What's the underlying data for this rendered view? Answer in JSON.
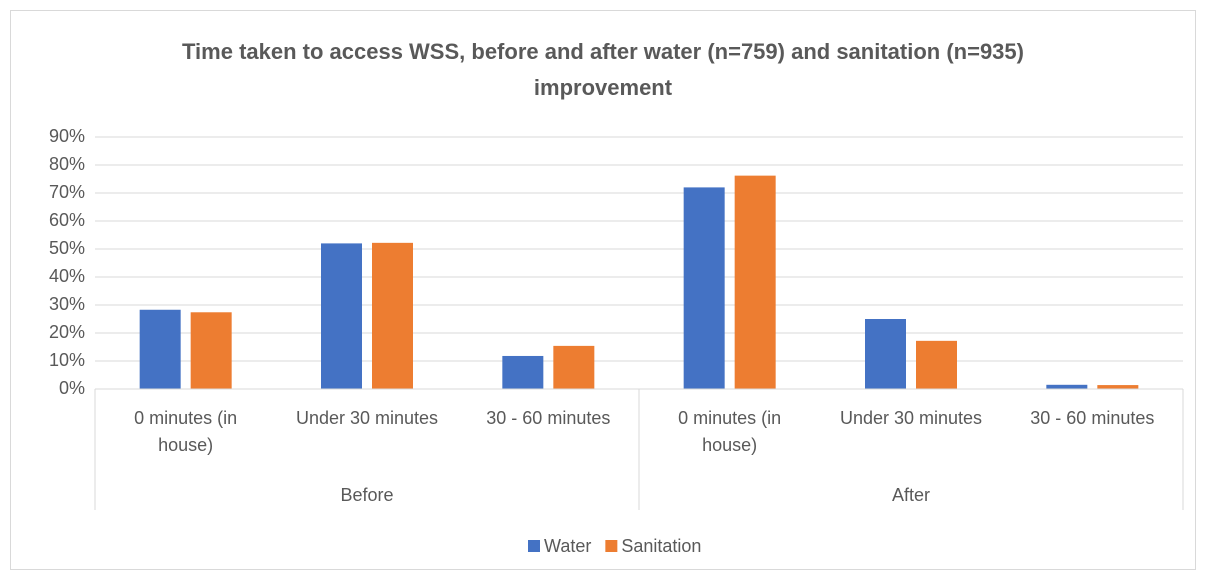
{
  "chart_data": {
    "type": "bar",
    "title": "Time taken to access WSS, before and after water (n=759) and sanitation (n=935) improvement",
    "categories": [
      "0 minutes (in house)",
      "Under 30 minutes",
      "30 - 60 minutes",
      "0 minutes (in house)",
      "Under 30 minutes",
      "30 - 60 minutes"
    ],
    "groups": [
      "Before",
      "After"
    ],
    "series": [
      {
        "name": "Water",
        "color": "#4472c4",
        "values": [
          28.3,
          52,
          11.8,
          72,
          25,
          1.5
        ]
      },
      {
        "name": "Sanitation",
        "color": "#ed7d31",
        "values": [
          27.4,
          52.2,
          15.4,
          76.2,
          17.2,
          1.4
        ]
      }
    ],
    "ylim": [
      0,
      90
    ],
    "yticks": [
      {
        "value": 0,
        "label": "0%"
      },
      {
        "value": 10,
        "label": "10%"
      },
      {
        "value": 20,
        "label": "20%"
      },
      {
        "value": 30,
        "label": "30%"
      },
      {
        "value": 40,
        "label": "40%"
      },
      {
        "value": 50,
        "label": "50%"
      },
      {
        "value": 60,
        "label": "60%"
      },
      {
        "value": 70,
        "label": "70%"
      },
      {
        "value": 80,
        "label": "80%"
      },
      {
        "value": 90,
        "label": "90%"
      }
    ],
    "grid": true,
    "legend": "bottom"
  }
}
